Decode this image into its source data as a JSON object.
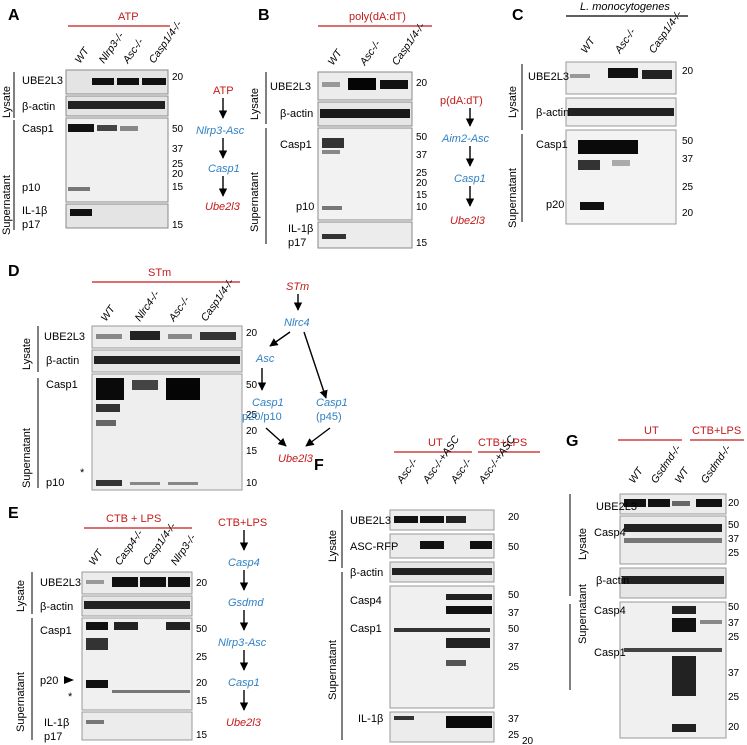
{
  "panels": {
    "A": {
      "letter": "A",
      "condition": "ATP",
      "lanes": [
        "WT",
        "Nlrp3-/-",
        "Asc-/-",
        "Casp1/4-/-"
      ],
      "lysate_label": "Lysate",
      "supernatant_label": "Supernatant",
      "rows": [
        "UBE2L3",
        "β-actin",
        "Casp1",
        "p10",
        "IL-1β",
        "p17"
      ],
      "markers": [
        "20",
        "50",
        "37",
        "25",
        "20",
        "15",
        "15"
      ],
      "pathway": [
        "ATP",
        "Nlrp3-Asc",
        "Casp1",
        "Ube2l3"
      ]
    },
    "B": {
      "letter": "B",
      "condition": "poly(dA:dT)",
      "lanes": [
        "WT",
        "Asc-/-",
        "Casp1/4-/-"
      ],
      "lysate_label": "Lysate",
      "supernatant_label": "Supernatant",
      "rows": [
        "UBE2L3",
        "β-actin",
        "Casp1",
        "p10",
        "IL-1β",
        "p17"
      ],
      "markers": [
        "20",
        "50",
        "37",
        "25",
        "20",
        "15",
        "10",
        "15"
      ],
      "pathway": [
        "p(dA:dT)",
        "Aim2-Asc",
        "Casp1",
        "Ube2l3"
      ]
    },
    "C": {
      "letter": "C",
      "condition": "L. monocytogenes",
      "lanes": [
        "WT",
        "Asc-/-",
        "Casp1/4-/-"
      ],
      "lysate_label": "Lysate",
      "supernatant_label": "Supernatant",
      "rows": [
        "UBE2L3",
        "β-actin",
        "Casp1",
        "p20"
      ],
      "markers": [
        "20",
        "50",
        "37",
        "25",
        "20"
      ]
    },
    "D": {
      "letter": "D",
      "condition": "STm",
      "lanes": [
        "WT",
        "Nlrc4-/-",
        "Asc-/-",
        "Casp1/4-/-"
      ],
      "lysate_label": "Lysate",
      "supernatant_label": "Supernatant",
      "rows": [
        "UBE2L3",
        "β-actin",
        "Casp1",
        "p10"
      ],
      "star": "*",
      "markers": [
        "20",
        "50",
        "25",
        "20",
        "15",
        "10"
      ],
      "pathway": {
        "top": "STm",
        "node": "Nlrc4",
        "left": "Asc",
        "casp_a": "Casp1",
        "casp_a_sub": "p20/p10",
        "casp_b": "Casp1",
        "casp_b_sub": "(p45)",
        "end": "Ube2l3"
      }
    },
    "E": {
      "letter": "E",
      "condition": "CTB + LPS",
      "lanes": [
        "WT",
        "Casp4-/-",
        "Casp1/4-/-",
        "Nlrp3-/-"
      ],
      "lysate_label": "Lysate",
      "supernatant_label": "Supernatant",
      "rows": [
        "UBE2L3",
        "β-actin",
        "Casp1",
        "p20",
        "IL-1β",
        "p17"
      ],
      "star": "*",
      "markers": [
        "20",
        "50",
        "25",
        "20",
        "15",
        "15"
      ],
      "pathway": [
        "CTB+LPS",
        "Casp4",
        "Gsdmd",
        "Nlrp3-Asc",
        "Casp1",
        "Ube2l3"
      ]
    },
    "F": {
      "letter": "F",
      "cond_a": "UT",
      "cond_b": "CTB+LPS",
      "lanes": [
        "Asc-/-",
        "Asc-/-+ASC",
        "Asc-/-",
        "Asc-/-+ASC"
      ],
      "lysate_label": "Lysate",
      "supernatant_label": "Supernatant",
      "rows": [
        "UBE2L3",
        "ASC-RFP",
        "β-actin",
        "Casp4",
        "Casp1",
        "IL-1β"
      ],
      "markers": [
        "20",
        "50",
        "50",
        "37",
        "50",
        "37",
        "25",
        "37",
        "25",
        "20"
      ]
    },
    "G": {
      "letter": "G",
      "cond_a": "UT",
      "cond_b": "CTB+LPS",
      "lanes": [
        "WT",
        "Gsdmd-/-",
        "WT",
        "Gsdmd-/-"
      ],
      "lysate_label": "Lysate",
      "supernatant_label": "Supernatant",
      "rows": [
        "UBE2L3",
        "Casp4",
        "β-actin",
        "Casp4",
        "Casp1"
      ],
      "markers": [
        "20",
        "50",
        "37",
        "25",
        "50",
        "37",
        "25",
        "37",
        "25",
        "20"
      ]
    }
  },
  "colors": {
    "red": "#c41a1a",
    "blue": "#2f7fc4"
  }
}
